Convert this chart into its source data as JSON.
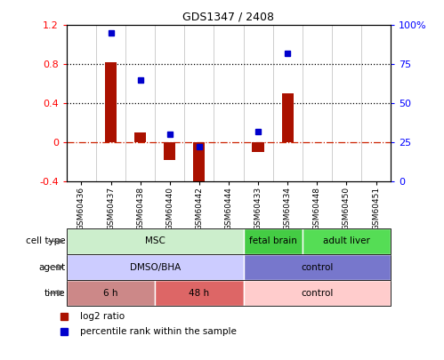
{
  "title": "GDS1347 / 2408",
  "samples": [
    "GSM60436",
    "GSM60437",
    "GSM60438",
    "GSM60440",
    "GSM60442",
    "GSM60444",
    "GSM60433",
    "GSM60434",
    "GSM60448",
    "GSM60450",
    "GSM60451"
  ],
  "log2_ratio": [
    0.0,
    0.82,
    0.1,
    -0.18,
    -0.45,
    0.0,
    -0.1,
    0.5,
    0.0,
    0.0,
    0.0
  ],
  "percentile_rank": [
    null,
    95,
    65,
    30,
    22,
    null,
    32,
    82,
    null,
    null,
    null
  ],
  "ylim": [
    -0.4,
    1.2
  ],
  "left_yticks": [
    -0.4,
    0.0,
    0.4,
    0.8,
    1.2
  ],
  "left_yticklabels": [
    "-0.4",
    "0",
    "0.4",
    "0.8",
    "1.2"
  ],
  "right_yticks_pct": [
    0,
    25,
    50,
    75,
    100
  ],
  "right_yticklabels": [
    "0",
    "25",
    "50",
    "75",
    "100%"
  ],
  "hlines": [
    0.8,
    0.4
  ],
  "hline_zero_color": "#cc2200",
  "bar_color": "#aa1100",
  "dot_color": "#0000cc",
  "cell_type_groups": [
    {
      "label": "MSC",
      "start": 0,
      "end": 6,
      "color": "#cceecc"
    },
    {
      "label": "fetal brain",
      "start": 6,
      "end": 8,
      "color": "#44cc44"
    },
    {
      "label": "adult liver",
      "start": 8,
      "end": 11,
      "color": "#55dd55"
    }
  ],
  "agent_groups": [
    {
      "label": "DMSO/BHA",
      "start": 0,
      "end": 6,
      "color": "#ccccff"
    },
    {
      "label": "control",
      "start": 6,
      "end": 11,
      "color": "#7777cc"
    }
  ],
  "time_groups": [
    {
      "label": "6 h",
      "start": 0,
      "end": 3,
      "color": "#cc8888"
    },
    {
      "label": "48 h",
      "start": 3,
      "end": 6,
      "color": "#dd6666"
    },
    {
      "label": "control",
      "start": 6,
      "end": 11,
      "color": "#ffcccc"
    }
  ],
  "row_labels": [
    "cell type",
    "agent",
    "time"
  ],
  "legend_log2_color": "#aa1100",
  "legend_pct_color": "#0000cc",
  "legend_log2_label": "log2 ratio",
  "legend_pct_label": "percentile rank within the sample"
}
